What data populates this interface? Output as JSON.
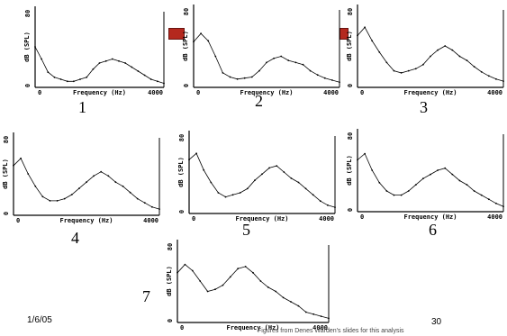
{
  "arrow_color": "#b4281e",
  "footer": {
    "date": "1/6/05",
    "page": "30",
    "credit": "Figures from Denes Warden's slides for this analysis"
  },
  "axis_text": {
    "ylabel": "dB (SPL)",
    "ytop": "80",
    "ybottom": "0",
    "xleft": "0",
    "xlabel": "Frequency (Hz)",
    "xright": "4000"
  },
  "panels": [
    {
      "number": "1"
    },
    {
      "number": "2"
    },
    {
      "number": "3"
    },
    {
      "number": "4"
    },
    {
      "number": "5"
    },
    {
      "number": "6"
    },
    {
      "number": "7"
    }
  ],
  "chart_data": [
    {
      "type": "line",
      "panel": "1",
      "xlabel": "Frequency (Hz)",
      "ylabel": "dB (SPL)",
      "xlim": [
        0,
        4000
      ],
      "ylim": [
        0,
        80
      ],
      "x": [
        0,
        200,
        400,
        600,
        800,
        1000,
        1200,
        1400,
        1600,
        1800,
        2000,
        2200,
        2400,
        2600,
        2800,
        3000,
        3200,
        3400,
        3600,
        3800,
        4000
      ],
      "y": [
        40,
        28,
        15,
        10,
        8,
        6,
        6,
        8,
        10,
        18,
        24,
        26,
        28,
        26,
        24,
        20,
        16,
        12,
        8,
        6,
        4
      ]
    },
    {
      "type": "line",
      "panel": "2",
      "xlabel": "Frequency (Hz)",
      "ylabel": "dB (SPL)",
      "xlim": [
        0,
        4000
      ],
      "ylim": [
        0,
        80
      ],
      "x": [
        0,
        200,
        400,
        600,
        800,
        1000,
        1200,
        1400,
        1600,
        1800,
        2000,
        2200,
        2400,
        2600,
        2800,
        3000,
        3200,
        3400,
        3600,
        3800,
        4000
      ],
      "y": [
        44,
        52,
        45,
        30,
        14,
        10,
        8,
        9,
        10,
        16,
        24,
        28,
        30,
        26,
        24,
        22,
        16,
        12,
        9,
        7,
        5
      ]
    },
    {
      "type": "line",
      "panel": "3",
      "xlabel": "Frequency (Hz)",
      "ylabel": "dB (SPL)",
      "xlim": [
        0,
        4000
      ],
      "ylim": [
        0,
        80
      ],
      "x": [
        0,
        200,
        400,
        600,
        800,
        1000,
        1200,
        1400,
        1600,
        1800,
        2000,
        2200,
        2400,
        2600,
        2800,
        3000,
        3200,
        3400,
        3600,
        3800,
        4000
      ],
      "y": [
        50,
        58,
        45,
        34,
        24,
        16,
        14,
        16,
        18,
        22,
        30,
        36,
        40,
        36,
        30,
        26,
        20,
        15,
        11,
        8,
        6
      ]
    },
    {
      "type": "line",
      "panel": "4",
      "xlabel": "Frequency (Hz)",
      "ylabel": "dB (SPL)",
      "xlim": [
        0,
        4000
      ],
      "ylim": [
        0,
        80
      ],
      "x": [
        0,
        200,
        400,
        600,
        800,
        1000,
        1200,
        1400,
        1600,
        1800,
        2000,
        2200,
        2400,
        2600,
        2800,
        3000,
        3200,
        3400,
        3600,
        3800,
        4000
      ],
      "y": [
        48,
        55,
        40,
        28,
        18,
        14,
        14,
        16,
        20,
        26,
        32,
        38,
        42,
        38,
        32,
        28,
        22,
        16,
        12,
        8,
        6
      ]
    },
    {
      "type": "line",
      "panel": "5",
      "xlabel": "Frequency (Hz)",
      "ylabel": "dB (SPL)",
      "xlim": [
        0,
        4000
      ],
      "ylim": [
        0,
        80
      ],
      "x": [
        0,
        200,
        400,
        600,
        800,
        1000,
        1200,
        1400,
        1600,
        1800,
        2000,
        2200,
        2400,
        2600,
        2800,
        3000,
        3200,
        3400,
        3600,
        3800,
        4000
      ],
      "y": [
        52,
        58,
        42,
        30,
        20,
        16,
        18,
        20,
        24,
        32,
        38,
        44,
        46,
        40,
        34,
        30,
        24,
        18,
        12,
        8,
        6
      ]
    },
    {
      "type": "line",
      "panel": "6",
      "xlabel": "Frequency (Hz)",
      "ylabel": "dB (SPL)",
      "xlim": [
        0,
        4000
      ],
      "ylim": [
        0,
        80
      ],
      "x": [
        0,
        200,
        400,
        600,
        800,
        1000,
        1200,
        1400,
        1600,
        1800,
        2000,
        2200,
        2400,
        2600,
        2800,
        3000,
        3200,
        3400,
        3600,
        3800,
        4000
      ],
      "y": [
        50,
        56,
        40,
        28,
        20,
        16,
        16,
        20,
        26,
        32,
        36,
        40,
        42,
        36,
        30,
        26,
        20,
        16,
        12,
        8,
        5
      ]
    },
    {
      "type": "line",
      "panel": "7",
      "xlabel": "Frequency (Hz)",
      "ylabel": "dB (SPL)",
      "xlim": [
        0,
        4000
      ],
      "ylim": [
        0,
        80
      ],
      "x": [
        0,
        200,
        400,
        600,
        800,
        1000,
        1200,
        1400,
        1600,
        1800,
        2000,
        2200,
        2400,
        2600,
        2800,
        3000,
        3200,
        3400,
        3600,
        3800,
        4000
      ],
      "y": [
        48,
        56,
        50,
        40,
        30,
        32,
        36,
        44,
        52,
        54,
        48,
        40,
        34,
        30,
        24,
        20,
        16,
        10,
        8,
        6,
        4
      ]
    }
  ]
}
